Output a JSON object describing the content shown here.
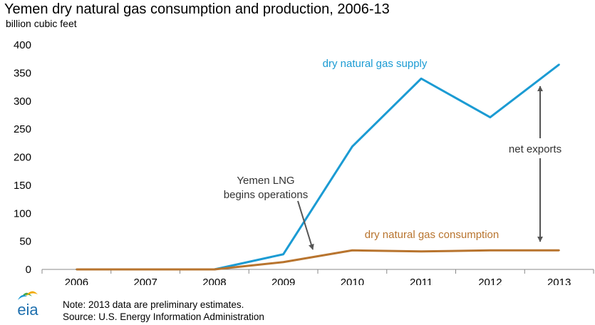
{
  "chart_data": {
    "type": "line",
    "title": "Yemen dry natural gas consumption and production, 2006-13",
    "ylabel": "billion cubic feet",
    "xlabel": "",
    "categories": [
      "2006",
      "2007",
      "2008",
      "2009",
      "2010",
      "2011",
      "2012",
      "2013"
    ],
    "ylim": [
      0,
      400
    ],
    "yticks": [
      0,
      50,
      100,
      150,
      200,
      250,
      300,
      350,
      400
    ],
    "grid": false,
    "series": [
      {
        "name": "dry natural gas supply",
        "color": "#1b9bd3",
        "values": [
          0,
          0,
          0,
          27,
          219,
          340,
          271,
          365
        ]
      },
      {
        "name": "dry natural gas consumption",
        "color": "#b8742e",
        "values": [
          0,
          0,
          0,
          13,
          34,
          32,
          34,
          34
        ]
      }
    ],
    "annotations": {
      "lng": [
        "Yemen LNG",
        "begins operations"
      ],
      "net_exports": "net exports"
    },
    "arrow_color": "#555555"
  },
  "footer": {
    "note": "Note: 2013 data are preliminary estimates.",
    "source": "Source: U.S. Energy Information Administration"
  },
  "logo": {
    "text": "eia",
    "icon": "eia-logo-icon",
    "colors": [
      "#1b9bd3",
      "#4aa84a",
      "#f2a900",
      "#1e6fae"
    ]
  }
}
